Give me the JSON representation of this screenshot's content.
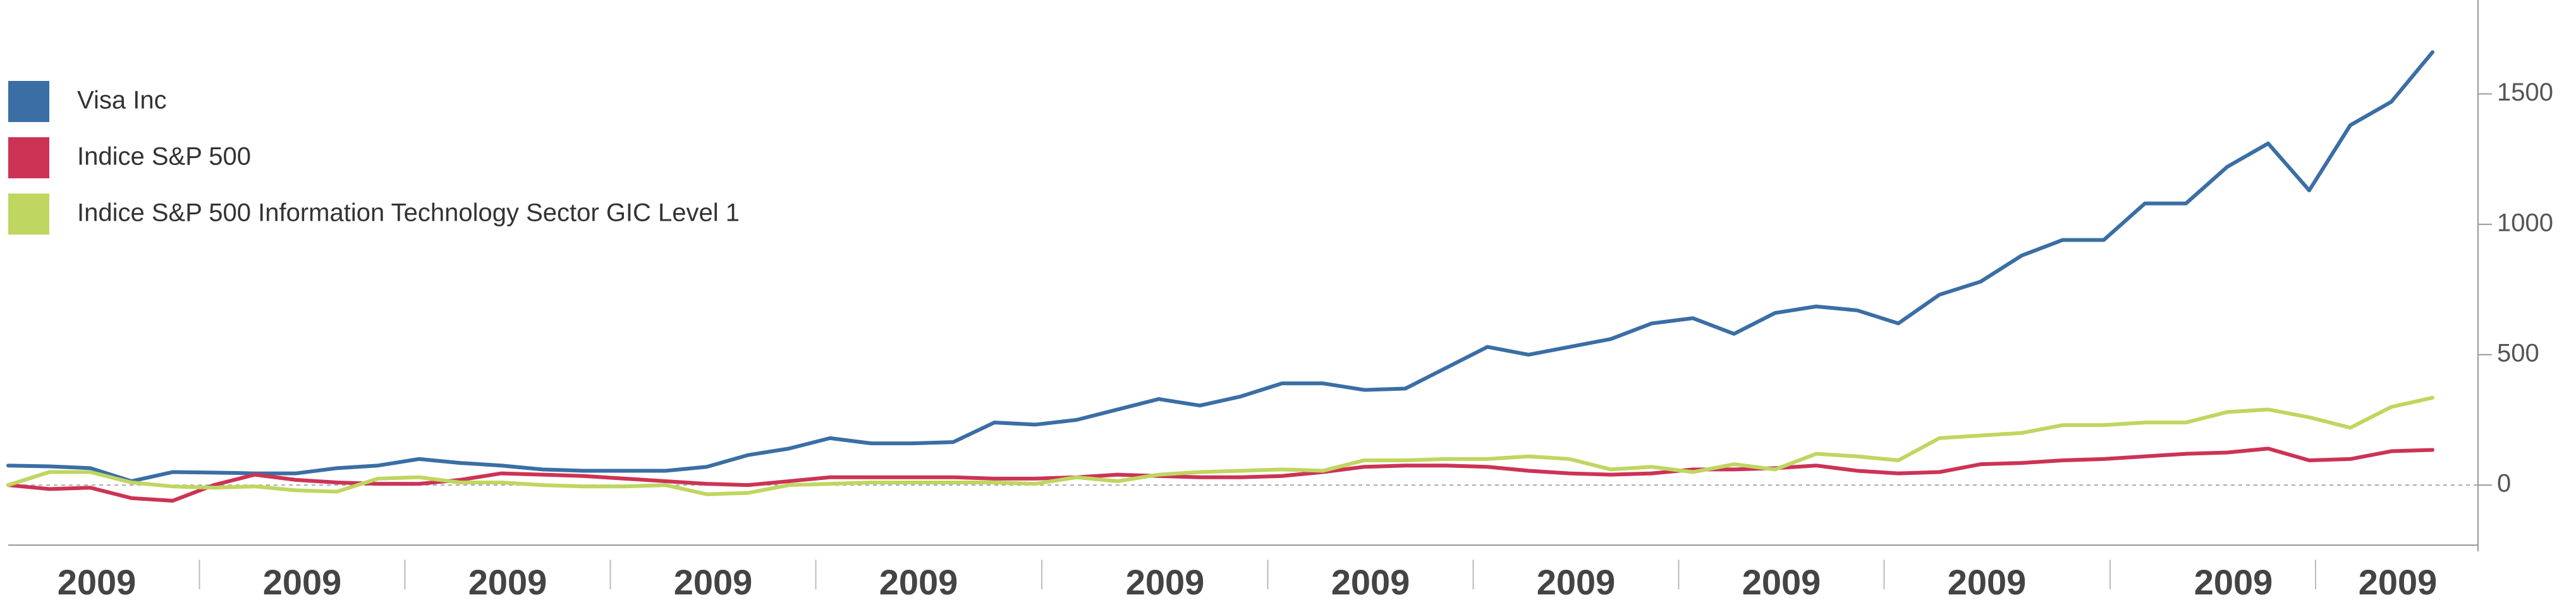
{
  "chart_data": {
    "type": "line",
    "categories": [
      null,
      null,
      "2009",
      null,
      null,
      null,
      null,
      "2009",
      null,
      null,
      null,
      null,
      "2009",
      null,
      null,
      null,
      null,
      "2009",
      null,
      null,
      null,
      null,
      "2009",
      null,
      null,
      null,
      null,
      null,
      "2009",
      null,
      null,
      null,
      null,
      "2009",
      null,
      null,
      null,
      null,
      "2009",
      null,
      null,
      null,
      null,
      "2009",
      null,
      null,
      null,
      null,
      "2009",
      null,
      null,
      null,
      null,
      null,
      "2009",
      null,
      null,
      null,
      "2009",
      null
    ],
    "series": [
      {
        "name": "Visa Inc",
        "color": "#3a6ea5",
        "values": [
          75,
          72,
          65,
          15,
          50,
          48,
          45,
          45,
          65,
          75,
          100,
          85,
          75,
          60,
          55,
          55,
          55,
          70,
          115,
          140,
          180,
          160,
          160,
          165,
          240,
          232,
          250,
          290,
          330,
          305,
          340,
          390,
          390,
          365,
          370,
          450,
          530,
          500,
          530,
          560,
          620,
          640,
          580,
          660,
          685,
          670,
          620,
          730,
          780,
          880,
          940,
          940,
          1080,
          1080,
          1220,
          1310,
          1130,
          1380,
          1470,
          1660
        ]
      },
      {
        "name": "Indice S&P 500",
        "color": "#cc3355",
        "values": [
          0,
          -15,
          -10,
          -50,
          -60,
          0,
          40,
          20,
          10,
          5,
          5,
          20,
          45,
          40,
          35,
          25,
          15,
          5,
          0,
          15,
          30,
          30,
          30,
          30,
          25,
          25,
          30,
          40,
          35,
          30,
          30,
          35,
          50,
          70,
          75,
          75,
          70,
          55,
          45,
          40,
          45,
          60,
          60,
          65,
          75,
          55,
          45,
          50,
          80,
          85,
          95,
          100,
          110,
          120,
          125,
          140,
          95,
          100,
          130,
          135
        ]
      },
      {
        "name": "Indice S&P 500 Information Technology Sector GIC Level 1",
        "color": "#bfd660",
        "values": [
          0,
          50,
          50,
          10,
          -5,
          -10,
          -5,
          -20,
          -25,
          25,
          30,
          10,
          10,
          0,
          -5,
          -5,
          0,
          -35,
          -30,
          0,
          5,
          10,
          10,
          10,
          10,
          5,
          30,
          15,
          40,
          50,
          55,
          60,
          55,
          95,
          95,
          100,
          100,
          110,
          100,
          60,
          70,
          50,
          80,
          60,
          120,
          110,
          95,
          180,
          190,
          200,
          230,
          230,
          240,
          240,
          280,
          290,
          260,
          220,
          300,
          335
        ]
      }
    ],
    "ylim": [
      -230,
      1860
    ],
    "yticks": [
      0,
      500,
      1000,
      1500
    ],
    "zero_line": true,
    "legend": "upper left"
  }
}
